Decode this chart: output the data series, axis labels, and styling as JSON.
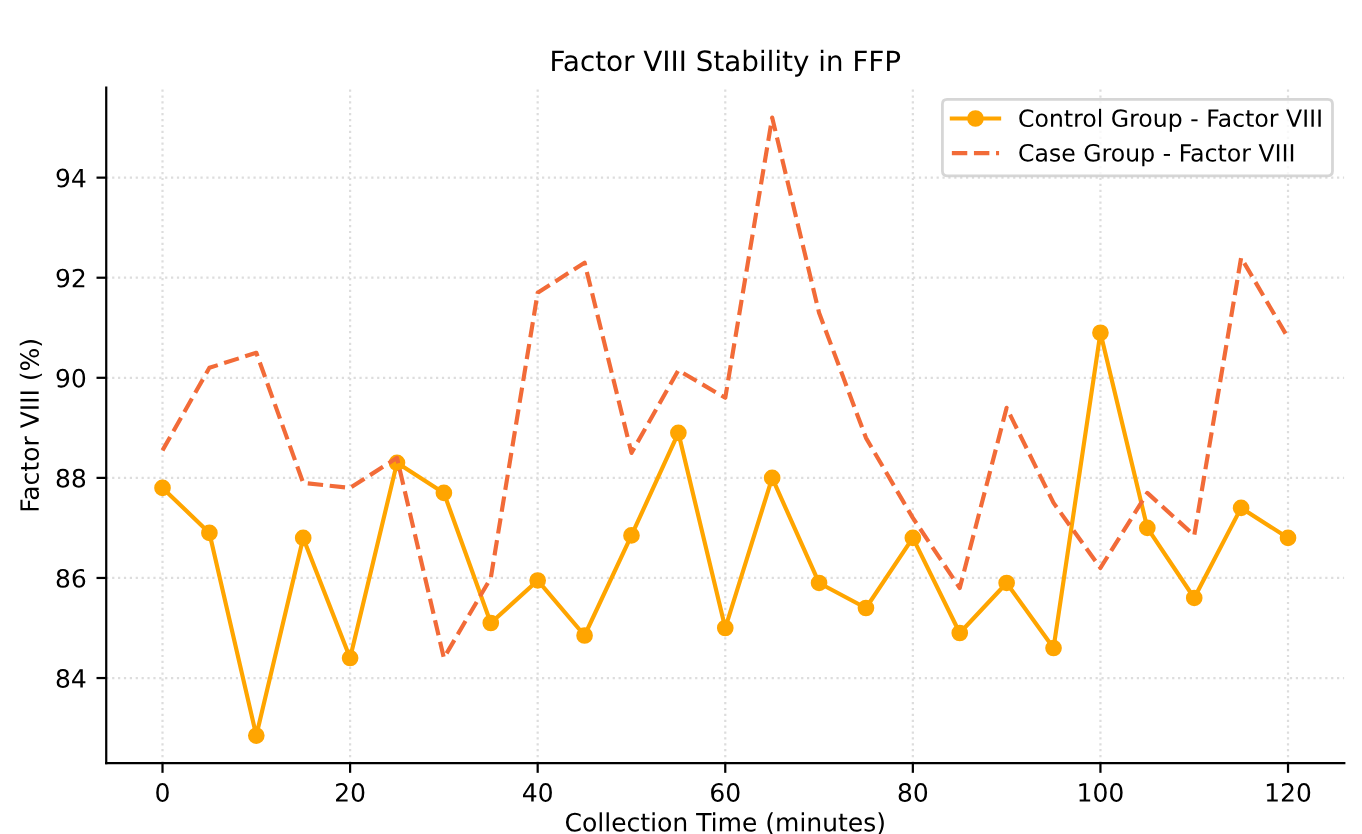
{
  "chart_data": {
    "type": "line",
    "title": "Factor VIII Stability in FFP",
    "xlabel": "Collection Time (minutes)",
    "ylabel": "Factor VIII (%)",
    "x": [
      0,
      5,
      10,
      15,
      20,
      25,
      30,
      35,
      40,
      45,
      50,
      55,
      60,
      65,
      70,
      75,
      80,
      85,
      90,
      95,
      100,
      105,
      110,
      115,
      120
    ],
    "series": [
      {
        "name": "Control Group - Factor VIII",
        "color": "#ffa500",
        "marker": "circle",
        "line_style": "solid",
        "values": [
          87.8,
          86.9,
          82.85,
          86.8,
          84.4,
          88.3,
          87.7,
          85.1,
          85.95,
          84.85,
          86.85,
          88.9,
          85.0,
          88.0,
          85.9,
          85.4,
          86.8,
          84.9,
          85.9,
          84.6,
          90.9,
          87.0,
          85.6,
          87.4,
          86.8
        ]
      },
      {
        "name": "Case Group - Factor VIII",
        "color": "#f26b38",
        "marker": "none",
        "line_style": "dashed",
        "values": [
          88.55,
          90.2,
          90.5,
          87.9,
          87.8,
          88.4,
          84.4,
          86.0,
          91.7,
          92.3,
          88.5,
          90.15,
          89.6,
          95.2,
          91.3,
          88.8,
          87.2,
          85.8,
          89.4,
          87.5,
          86.2,
          87.7,
          86.85,
          92.4,
          90.8
        ]
      }
    ],
    "xlim": [
      -6,
      126
    ],
    "ylim": [
      82.3,
      95.8
    ],
    "xticks": [
      0,
      20,
      40,
      60,
      80,
      100,
      120
    ],
    "yticks": [
      84,
      86,
      88,
      90,
      92,
      94
    ],
    "grid": true,
    "legend": "top right"
  }
}
